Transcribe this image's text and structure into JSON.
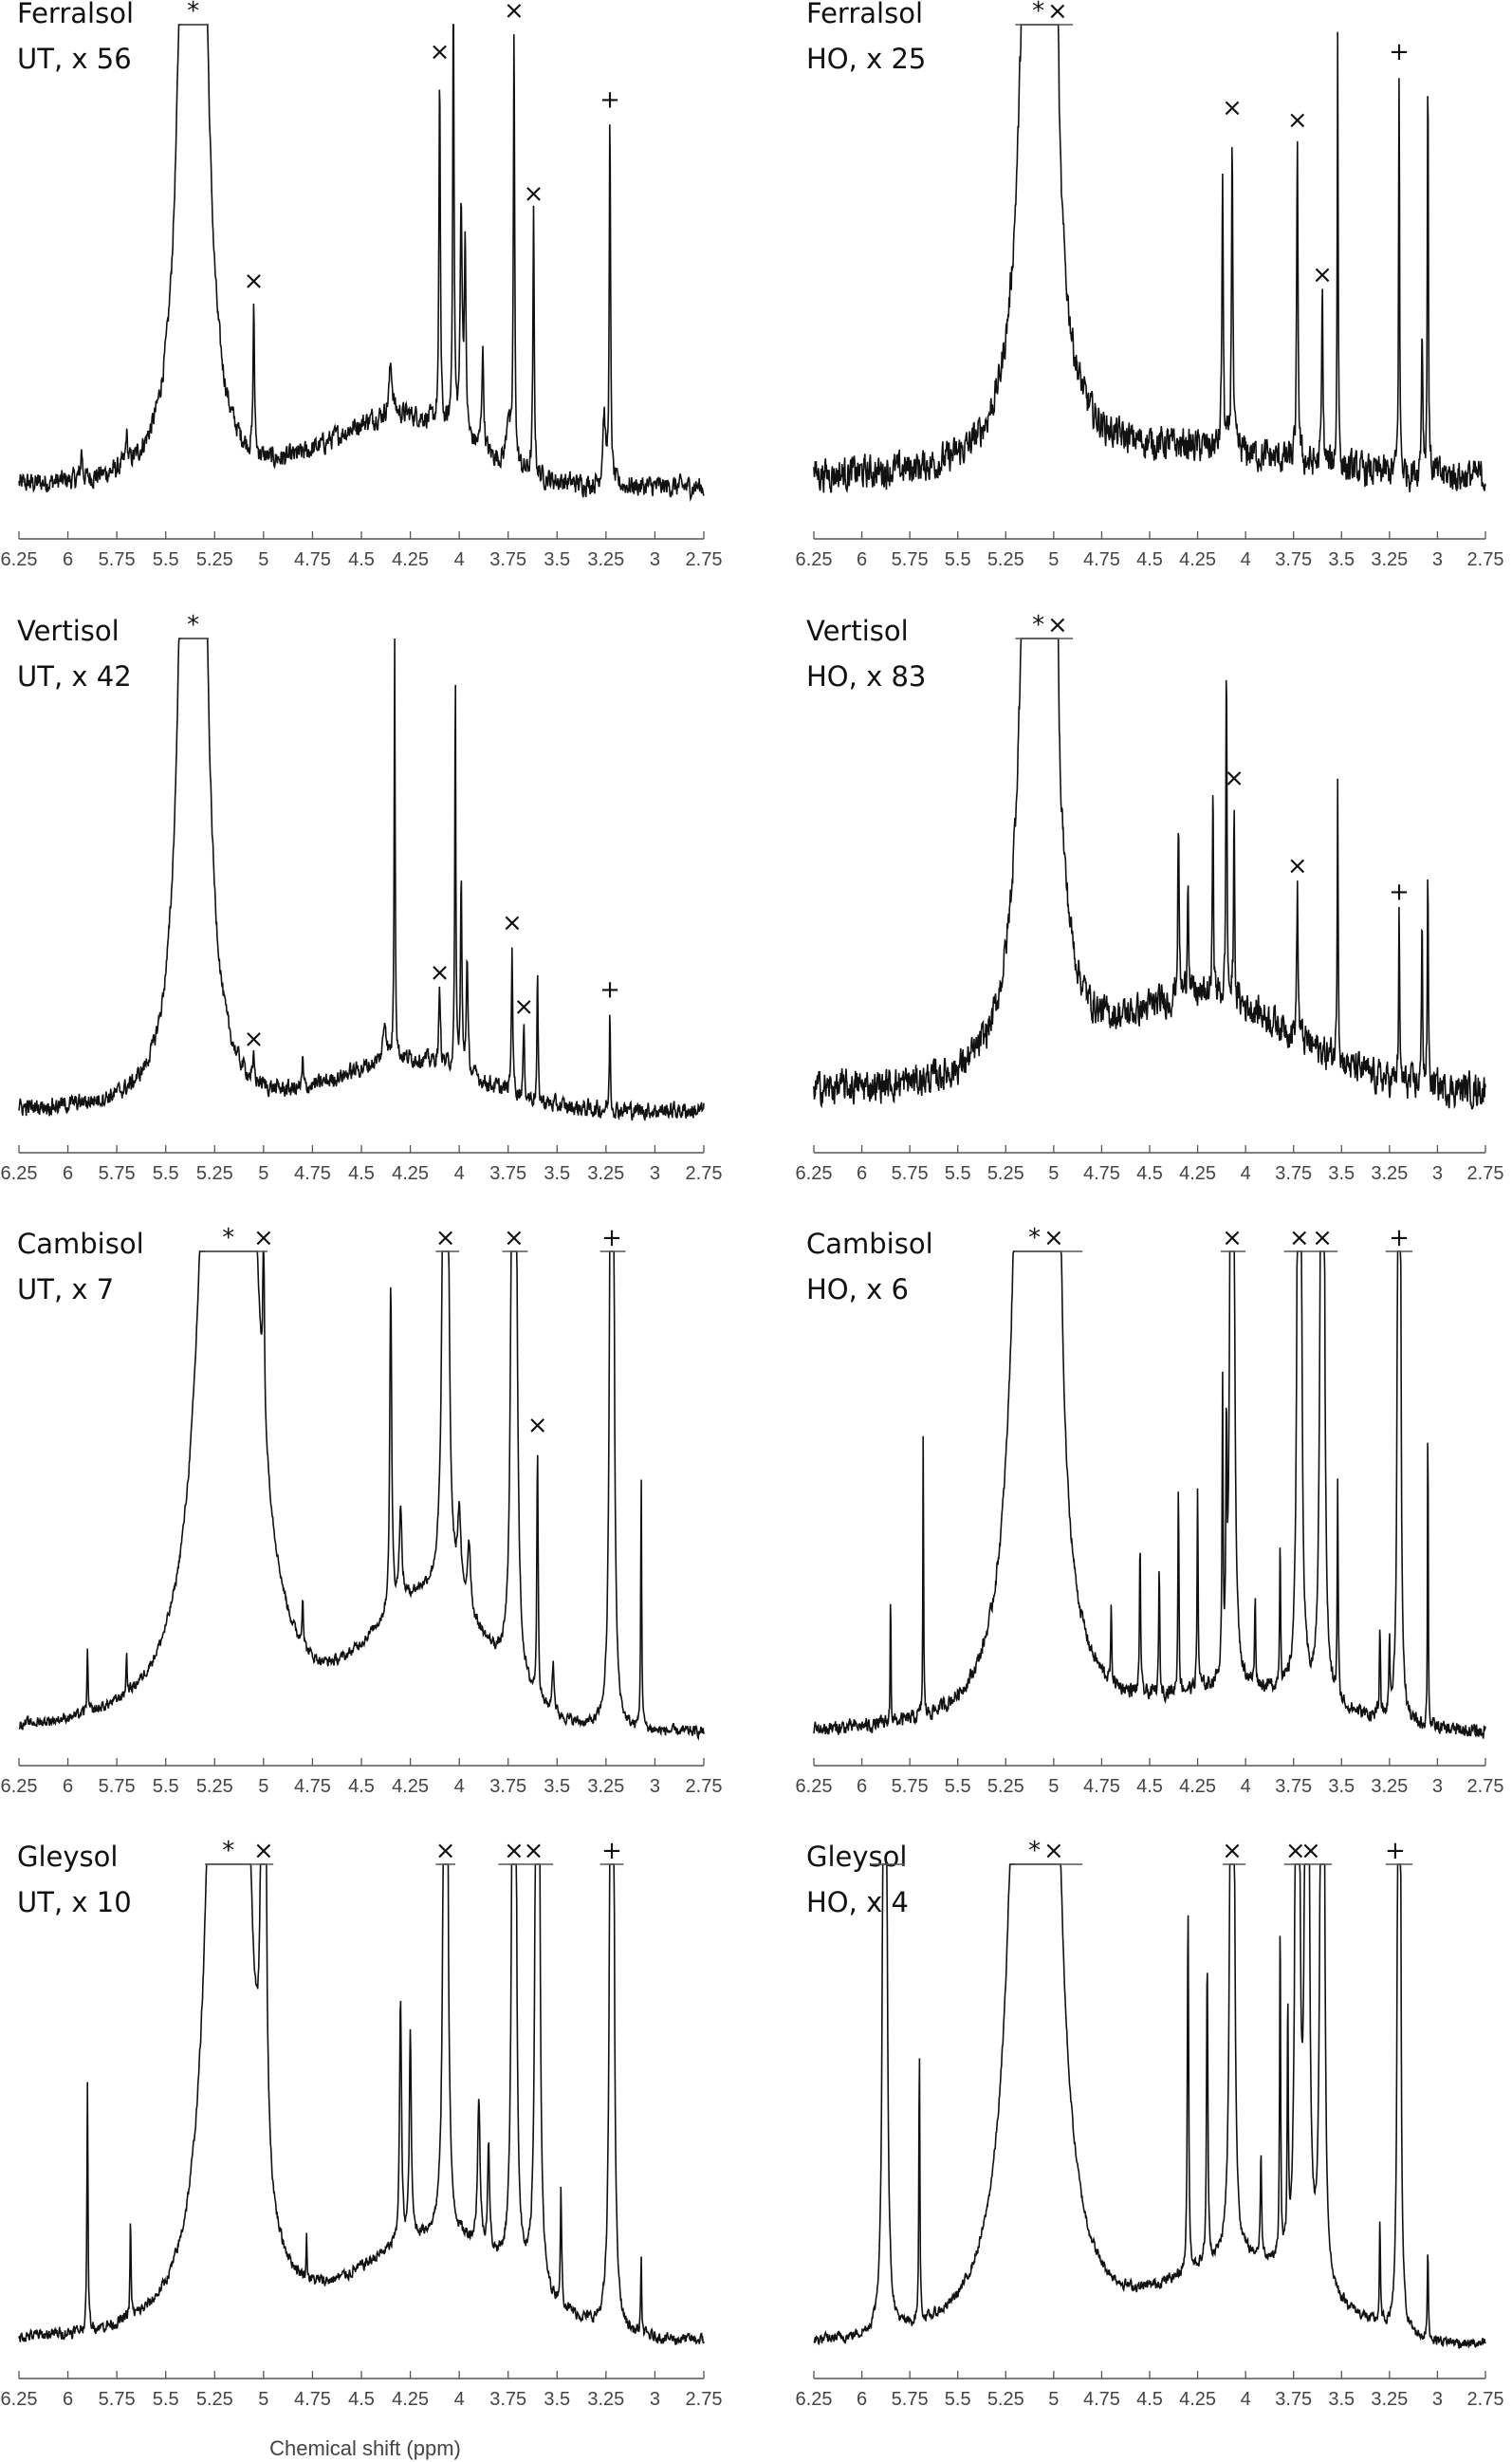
{
  "chart_data": [
    {
      "type": "line",
      "title": [
        "Ferralsol",
        "UT, x 56"
      ],
      "xlim": [
        6.25,
        2.75
      ],
      "ylim": [
        0,
        100
      ],
      "baseline": 8,
      "noise": 3.2,
      "hump": [
        {
          "center": 4.3,
          "amp": 14,
          "sigma": 0.35
        }
      ],
      "peaks": [
        [
          5.36,
          900,
          0.025
        ],
        [
          5.05,
          30,
          0.004
        ],
        [
          4.1,
          70,
          0.004
        ],
        [
          4.03,
          92,
          0.004
        ],
        [
          3.99,
          45,
          0.006
        ],
        [
          3.97,
          38,
          0.005
        ],
        [
          3.88,
          20,
          0.006
        ],
        [
          3.72,
          86,
          0.004
        ],
        [
          3.75,
          10,
          0.01
        ],
        [
          3.62,
          52,
          0.004
        ],
        [
          3.23,
          72,
          0.004
        ],
        [
          3.26,
          14,
          0.008
        ],
        [
          4.35,
          10,
          0.01
        ],
        [
          5.7,
          6,
          0.005
        ],
        [
          5.93,
          6,
          0.005
        ]
      ],
      "truncated": [
        [
          5.42,
          5.28
        ]
      ],
      "markers": [
        {
          "ppm": 5.36,
          "symbol": "*"
        },
        {
          "ppm": 5.05,
          "symbol": "×"
        },
        {
          "ppm": 4.1,
          "symbol": "×"
        },
        {
          "ppm": 3.72,
          "symbol": "×"
        },
        {
          "ppm": 3.62,
          "symbol": "×"
        },
        {
          "ppm": 3.23,
          "symbol": "+"
        }
      ]
    },
    {
      "type": "line",
      "title": [
        "Ferralsol",
        "HO, x 25"
      ],
      "xlim": [
        6.25,
        2.75
      ],
      "ylim": [
        0,
        100
      ],
      "baseline": 10,
      "noise": 5,
      "hump": [
        {
          "center": 4.3,
          "amp": 5,
          "sigma": 0.5
        }
      ],
      "peaks": [
        [
          5.08,
          900,
          0.03
        ],
        [
          4.98,
          50,
          0.004
        ],
        [
          4.12,
          55,
          0.004
        ],
        [
          4.07,
          64,
          0.004
        ],
        [
          3.73,
          64,
          0.004
        ],
        [
          3.6,
          34,
          0.004
        ],
        [
          3.52,
          86,
          0.003
        ],
        [
          3.2,
          80,
          0.003
        ],
        [
          3.05,
          85,
          0.003
        ],
        [
          3.08,
          30,
          0.004
        ]
      ],
      "truncated": [
        [
          5.2,
          4.9
        ]
      ],
      "markers": [
        {
          "ppm": 5.08,
          "symbol": "*"
        },
        {
          "ppm": 4.98,
          "symbol": "×"
        },
        {
          "ppm": 4.07,
          "symbol": "×"
        },
        {
          "ppm": 3.73,
          "symbol": "×"
        },
        {
          "ppm": 3.6,
          "symbol": "×"
        },
        {
          "ppm": 3.2,
          "symbol": "+"
        }
      ]
    },
    {
      "type": "line",
      "title": [
        "Vertisol",
        "UT, x 42"
      ],
      "xlim": [
        6.25,
        2.75
      ],
      "ylim": [
        0,
        100
      ],
      "baseline": 6,
      "noise": 2.6,
      "hump": [
        {
          "center": 4.25,
          "amp": 10,
          "sigma": 0.35
        }
      ],
      "peaks": [
        [
          5.36,
          900,
          0.025
        ],
        [
          5.05,
          4,
          0.004
        ],
        [
          4.33,
          88,
          0.003
        ],
        [
          4.38,
          8,
          0.01
        ],
        [
          4.1,
          14,
          0.005
        ],
        [
          4.02,
          80,
          0.003
        ],
        [
          3.99,
          38,
          0.004
        ],
        [
          3.96,
          22,
          0.005
        ],
        [
          3.73,
          30,
          0.004
        ],
        [
          3.67,
          14,
          0.004
        ],
        [
          3.6,
          26,
          0.003
        ],
        [
          3.23,
          20,
          0.003
        ],
        [
          4.8,
          6,
          0.003
        ]
      ],
      "truncated": [
        [
          5.42,
          5.28
        ]
      ],
      "markers": [
        {
          "ppm": 5.36,
          "symbol": "*"
        },
        {
          "ppm": 5.05,
          "symbol": "×"
        },
        {
          "ppm": 4.1,
          "symbol": "×"
        },
        {
          "ppm": 3.73,
          "symbol": "×"
        },
        {
          "ppm": 3.67,
          "symbol": "×"
        },
        {
          "ppm": 3.23,
          "symbol": "+"
        }
      ]
    },
    {
      "type": "line",
      "title": [
        "Vertisol",
        "HO, x 83"
      ],
      "xlim": [
        6.25,
        2.75
      ],
      "ylim": [
        0,
        100
      ],
      "baseline": 10,
      "noise": 5,
      "hump": [
        {
          "center": 4.2,
          "amp": 18,
          "sigma": 0.45
        }
      ],
      "peaks": [
        [
          5.08,
          900,
          0.03
        ],
        [
          4.98,
          38,
          0.004
        ],
        [
          4.35,
          35,
          0.004
        ],
        [
          4.3,
          25,
          0.004
        ],
        [
          4.17,
          45,
          0.003
        ],
        [
          4.1,
          72,
          0.003
        ],
        [
          4.06,
          40,
          0.003
        ],
        [
          3.73,
          30,
          0.004
        ],
        [
          3.52,
          58,
          0.003
        ],
        [
          3.2,
          34,
          0.003
        ],
        [
          3.05,
          42,
          0.003
        ],
        [
          3.08,
          36,
          0.003
        ]
      ],
      "truncated": [
        [
          5.2,
          4.9
        ]
      ],
      "markers": [
        {
          "ppm": 5.08,
          "symbol": "*"
        },
        {
          "ppm": 4.98,
          "symbol": "×"
        },
        {
          "ppm": 4.06,
          "symbol": "×"
        },
        {
          "ppm": 3.73,
          "symbol": "×"
        },
        {
          "ppm": 3.2,
          "symbol": "+"
        }
      ]
    },
    {
      "type": "line",
      "title": [
        "Cambisol",
        "UT, x 7"
      ],
      "xlim": [
        6.25,
        2.75
      ],
      "ylim": [
        0,
        100
      ],
      "baseline": 4,
      "noise": 1.6,
      "hump": [
        {
          "center": 4.15,
          "amp": 26,
          "sigma": 0.3
        }
      ],
      "peaks": [
        [
          5.18,
          1400,
          0.04
        ],
        [
          5.0,
          42,
          0.004
        ],
        [
          4.35,
          64,
          0.006
        ],
        [
          4.3,
          18,
          0.008
        ],
        [
          4.07,
          900,
          0.005
        ],
        [
          3.95,
          14,
          0.01
        ],
        [
          3.72,
          900,
          0.005
        ],
        [
          3.6,
          50,
          0.004
        ],
        [
          3.52,
          10,
          0.006
        ],
        [
          3.22,
          900,
          0.004
        ],
        [
          3.07,
          50,
          0.003
        ],
        [
          5.9,
          12,
          0.003
        ],
        [
          5.7,
          8,
          0.003
        ],
        [
          4.8,
          10,
          0.004
        ],
        [
          4.0,
          16,
          0.01
        ]
      ],
      "truncated": [
        [
          5.3,
          4.98
        ],
        [
          4.12,
          4.0
        ],
        [
          3.78,
          3.65
        ],
        [
          3.28,
          3.15
        ]
      ],
      "markers": [
        {
          "ppm": 5.18,
          "symbol": "*"
        },
        {
          "ppm": 5.0,
          "symbol": "×"
        },
        {
          "ppm": 4.07,
          "symbol": "×"
        },
        {
          "ppm": 3.72,
          "symbol": "×"
        },
        {
          "ppm": 3.6,
          "symbol": "×"
        },
        {
          "ppm": 3.22,
          "symbol": "+"
        }
      ]
    },
    {
      "type": "line",
      "title": [
        "Cambisol",
        "HO, x 6"
      ],
      "xlim": [
        6.25,
        2.75
      ],
      "ylim": [
        0,
        100
      ],
      "baseline": 4,
      "noise": 2.2,
      "hump": [
        {
          "center": 4.0,
          "amp": 8,
          "sigma": 0.45
        }
      ],
      "peaks": [
        [
          5.1,
          1400,
          0.03
        ],
        [
          4.99,
          900,
          0.006
        ],
        [
          4.07,
          900,
          0.004
        ],
        [
          3.72,
          900,
          0.004
        ],
        [
          3.6,
          900,
          0.004
        ],
        [
          3.2,
          900,
          0.003
        ],
        [
          5.85,
          30,
          0.002
        ],
        [
          5.68,
          62,
          0.002
        ],
        [
          4.55,
          32,
          0.003
        ],
        [
          4.45,
          26,
          0.003
        ],
        [
          4.35,
          42,
          0.003
        ],
        [
          4.25,
          40,
          0.003
        ],
        [
          4.12,
          55,
          0.003
        ],
        [
          4.1,
          45,
          0.003
        ],
        [
          3.82,
          30,
          0.003
        ],
        [
          3.52,
          42,
          0.003
        ],
        [
          3.3,
          18,
          0.003
        ],
        [
          3.25,
          16,
          0.003
        ],
        [
          3.05,
          70,
          0.002
        ],
        [
          4.7,
          14,
          0.003
        ],
        [
          3.95,
          18,
          0.003
        ]
      ],
      "truncated": [
        [
          5.2,
          4.85
        ],
        [
          4.13,
          4.0
        ],
        [
          3.8,
          3.52
        ],
        [
          3.27,
          3.13
        ]
      ],
      "markers": [
        {
          "ppm": 5.1,
          "symbol": "*"
        },
        {
          "ppm": 5.0,
          "symbol": "×"
        },
        {
          "ppm": 4.07,
          "symbol": "×"
        },
        {
          "ppm": 3.72,
          "symbol": "×"
        },
        {
          "ppm": 3.6,
          "symbol": "×"
        },
        {
          "ppm": 3.2,
          "symbol": "+"
        }
      ]
    },
    {
      "type": "line",
      "title": [
        "Gleysol",
        "UT, x 10"
      ],
      "xlim": [
        6.25,
        2.75
      ],
      "ylim": [
        0,
        100
      ],
      "baseline": 5,
      "noise": 1.8,
      "hump": [
        {
          "center": 4.1,
          "amp": 20,
          "sigma": 0.4
        }
      ],
      "peaks": [
        [
          5.18,
          1400,
          0.03
        ],
        [
          5.0,
          900,
          0.004
        ],
        [
          4.07,
          900,
          0.004
        ],
        [
          3.72,
          900,
          0.004
        ],
        [
          3.6,
          900,
          0.004
        ],
        [
          3.22,
          900,
          0.004
        ],
        [
          5.9,
          50,
          0.003
        ],
        [
          5.68,
          20,
          0.003
        ],
        [
          4.3,
          48,
          0.006
        ],
        [
          4.25,
          40,
          0.006
        ],
        [
          3.9,
          28,
          0.008
        ],
        [
          3.85,
          20,
          0.006
        ],
        [
          3.48,
          22,
          0.004
        ],
        [
          3.07,
          14,
          0.003
        ],
        [
          4.78,
          8,
          0.003
        ]
      ],
      "truncated": [
        [
          5.3,
          4.95
        ],
        [
          4.12,
          4.02
        ],
        [
          3.8,
          3.52
        ],
        [
          3.28,
          3.16
        ]
      ],
      "markers": [
        {
          "ppm": 5.18,
          "symbol": "*"
        },
        {
          "ppm": 5.0,
          "symbol": "×"
        },
        {
          "ppm": 4.07,
          "symbol": "×"
        },
        {
          "ppm": 3.72,
          "symbol": "×"
        },
        {
          "ppm": 3.62,
          "symbol": "×"
        },
        {
          "ppm": 3.22,
          "symbol": "+"
        }
      ]
    },
    {
      "type": "line",
      "title": [
        "Gleysol",
        "HO, x 4"
      ],
      "xlim": [
        6.25,
        2.75
      ],
      "ylim": [
        0,
        100
      ],
      "baseline": 4,
      "noise": 1.6,
      "hump": [
        {
          "center": 4.0,
          "amp": 16,
          "sigma": 0.4
        }
      ],
      "peaks": [
        [
          5.88,
          900,
          0.004
        ],
        [
          5.1,
          1400,
          0.035
        ],
        [
          5.0,
          900,
          0.004
        ],
        [
          4.07,
          900,
          0.004
        ],
        [
          3.73,
          900,
          0.004
        ],
        [
          3.68,
          900,
          0.004
        ],
        [
          3.6,
          900,
          0.004
        ],
        [
          3.2,
          900,
          0.003
        ],
        [
          5.7,
          55,
          0.003
        ],
        [
          4.3,
          72,
          0.004
        ],
        [
          4.2,
          60,
          0.004
        ],
        [
          3.82,
          70,
          0.003
        ],
        [
          3.78,
          50,
          0.003
        ],
        [
          3.3,
          20,
          0.003
        ],
        [
          3.05,
          18,
          0.003
        ],
        [
          3.92,
          20,
          0.004
        ]
      ],
      "truncated": [
        [
          5.95,
          5.78
        ],
        [
          5.2,
          4.85
        ],
        [
          4.12,
          4.0
        ],
        [
          3.8,
          3.55
        ],
        [
          3.27,
          3.13
        ]
      ],
      "markers": [
        {
          "ppm": 5.1,
          "symbol": "*"
        },
        {
          "ppm": 5.0,
          "symbol": "×"
        },
        {
          "ppm": 4.07,
          "symbol": "×"
        },
        {
          "ppm": 3.74,
          "symbol": "×"
        },
        {
          "ppm": 3.66,
          "symbol": "×"
        },
        {
          "ppm": 3.22,
          "symbol": "+"
        }
      ]
    }
  ],
  "axis": {
    "tick_labels": [
      "6.25",
      "6",
      "5.75",
      "5.5",
      "5.25",
      "5",
      "4.75",
      "4.5",
      "4.25",
      "4",
      "3.75",
      "3.5",
      "3.25",
      "3",
      "2.75"
    ],
    "xlabel": "Chemical shift (ppm)"
  }
}
